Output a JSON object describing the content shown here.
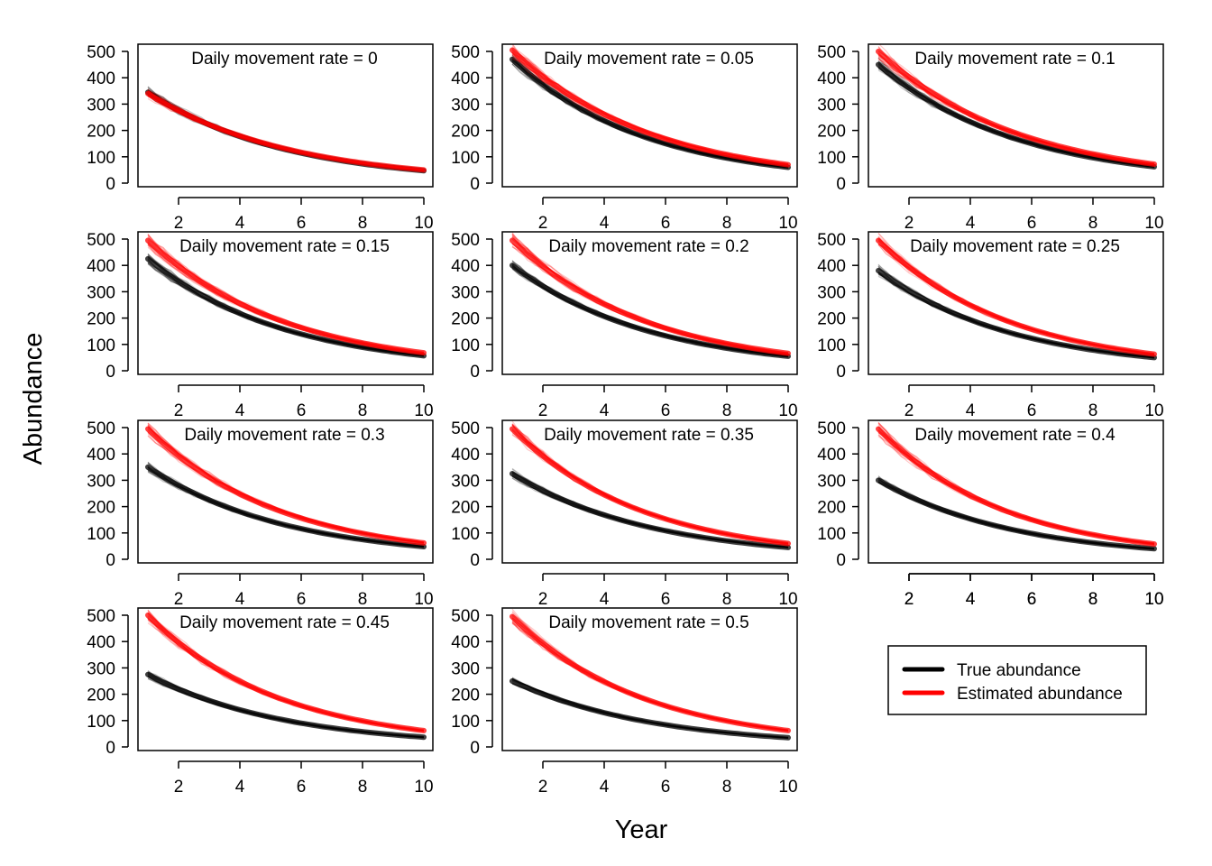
{
  "chart_data": {
    "type": "line",
    "xlabel": "Year",
    "ylabel": "Abundance",
    "xlim": [
      1,
      10
    ],
    "ylim": [
      0,
      500
    ],
    "xticks": [
      2,
      4,
      6,
      8,
      10
    ],
    "yticks": [
      0,
      100,
      200,
      300,
      400,
      500
    ],
    "title_prefix": "Daily movement rate = ",
    "colors": {
      "true": "#000000",
      "estimated": "#ff0000"
    },
    "legend": [
      {
        "label": "True abundance",
        "color": "#000000"
      },
      {
        "label": "Estimated abundance",
        "color": "#ff0000"
      }
    ],
    "panels": [
      {
        "rate": "0",
        "true_start": 345,
        "true_end": 47,
        "est_start": 340,
        "est_end": 50
      },
      {
        "rate": "0.05",
        "true_start": 470,
        "true_end": 60,
        "est_start": 505,
        "est_end": 70
      },
      {
        "rate": "0.1",
        "true_start": 450,
        "true_end": 62,
        "est_start": 500,
        "est_end": 72
      },
      {
        "rate": "0.15",
        "true_start": 425,
        "true_end": 57,
        "est_start": 495,
        "est_end": 68
      },
      {
        "rate": "0.2",
        "true_start": 400,
        "true_end": 55,
        "est_start": 495,
        "est_end": 66
      },
      {
        "rate": "0.25",
        "true_start": 380,
        "true_end": 50,
        "est_start": 495,
        "est_end": 63
      },
      {
        "rate": "0.3",
        "true_start": 350,
        "true_end": 48,
        "est_start": 495,
        "est_end": 62
      },
      {
        "rate": "0.35",
        "true_start": 325,
        "true_end": 45,
        "est_start": 495,
        "est_end": 60
      },
      {
        "rate": "0.4",
        "true_start": 300,
        "true_end": 40,
        "est_start": 495,
        "est_end": 58
      },
      {
        "rate": "0.45",
        "true_start": 275,
        "true_end": 37,
        "est_start": 500,
        "est_end": 62
      },
      {
        "rate": "0.5",
        "true_start": 250,
        "true_end": 35,
        "est_start": 495,
        "est_end": 62
      }
    ]
  }
}
